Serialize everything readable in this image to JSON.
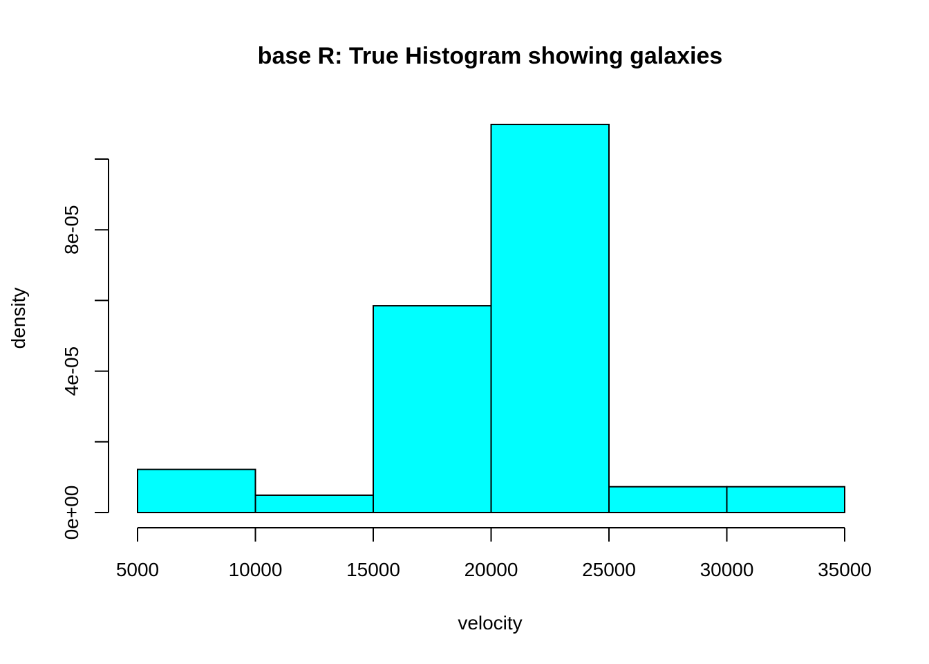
{
  "chart_data": {
    "type": "bar",
    "title": "base R: True Histogram showing galaxies",
    "xlabel": "velocity",
    "ylabel": "density",
    "bar_color": "#00FFFF",
    "bins": [
      {
        "start": 5000,
        "end": 10000,
        "value": 1.22e-05
      },
      {
        "start": 10000,
        "end": 15000,
        "value": 4.9e-06
      },
      {
        "start": 15000,
        "end": 20000,
        "value": 5.85e-05
      },
      {
        "start": 20000,
        "end": 25000,
        "value": 0.0001098
      },
      {
        "start": 25000,
        "end": 30000,
        "value": 7.3e-06
      },
      {
        "start": 30000,
        "end": 35000,
        "value": 7.3e-06
      }
    ],
    "xlim": [
      5000,
      35000
    ],
    "ylim": [
      0,
      0.0001
    ],
    "x_ticks": [
      5000,
      10000,
      15000,
      20000,
      25000,
      30000,
      35000
    ],
    "x_tick_labels": [
      "5000",
      "10000",
      "15000",
      "20000",
      "25000",
      "30000",
      "35000"
    ],
    "y_ticks": [
      0,
      2e-05,
      4e-05,
      6e-05,
      8e-05,
      0.0001
    ],
    "y_tick_labels": [
      {
        "value": 0,
        "label": "0e+00"
      },
      {
        "value": 4e-05,
        "label": "4e-05"
      },
      {
        "value": 8e-05,
        "label": "8e-05"
      }
    ]
  }
}
